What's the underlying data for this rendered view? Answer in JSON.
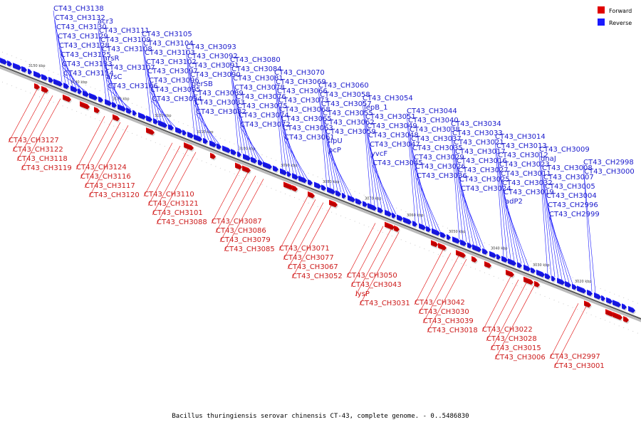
{
  "caption": "Bacillus thuringiensis serovar chinensis CT-43, complete genome. - 0..5486830",
  "colors": {
    "forward": "#e00000",
    "reverse": "#1a1aff",
    "backbone": "#888888"
  },
  "legend": [
    {
      "label": "Forward",
      "color": "#e00000"
    },
    {
      "label": "Reverse",
      "color": "#1a1aff"
    }
  ],
  "ticks": [
    "3150 kbp",
    "3140 kbp",
    "3130 kbp",
    "3120 kbp",
    "3110 kbp",
    "3100 kbp",
    "3090 kbp",
    "3080 kbp",
    "3070 kbp",
    "3060 kbp",
    "3050 kbp",
    "3040 kbp",
    "3030 kbp",
    "3020 kbp"
  ],
  "reverse_labels": [
    "CT43_CH3138",
    "CT43_CH3132",
    "CT43_CH3130",
    "CT43_CH3129",
    "CT43_CH3128",
    "CT43_CH3125",
    "CT43_CH3133",
    "CT43_CH3114",
    "acr3",
    "CT43_CH3111",
    "CT43_CH3109",
    "CT43_CH3108",
    "arsR",
    "CT43_CH3107",
    "arsC",
    "CT43_CH3106",
    "CT43_CH3105",
    "CT43_CH3104",
    "CT43_CH3103",
    "CT43_CH3102",
    "CT43_CH3097",
    "CT43_CH3096",
    "CT43_CH3095",
    "CT43_CH3094",
    "CT43_CH3093",
    "CT43_CH3092",
    "CT43_CH3091",
    "CT43_CH3090",
    "gerSB",
    "CT43_CH3089",
    "CT43_CH3083",
    "CT43_CH3082",
    "CT43_CH3080",
    "CT43_CH3084",
    "CT43_CH3081",
    "CT43_CH3078",
    "CT43_CH3076",
    "CT43_CH3075",
    "CT43_CH3074",
    "CT43_CH3072",
    "CT43_CH3070",
    "CT43_CH3069",
    "CT43_CH3066",
    "CT43_CH3073",
    "CT43_CH3068",
    "CT43_CH3065",
    "CT43_CH3063",
    "CT43_CH3061",
    "CT43_CH3060",
    "CT43_CH3058",
    "CT43_CH3057",
    "CT43_CH3055",
    "CT43_CH3062",
    "CT43_CH3059",
    "sipU",
    "pcP",
    "CT43_CH3054",
    "lepB_1",
    "CT43_CH3051",
    "CT43_CH3049",
    "CT43_CH3048",
    "CT43_CH3047",
    "yvcF",
    "CT43_CH3045",
    "CT43_CH3044",
    "CT43_CH3040",
    "CT43_CH3038",
    "CT43_CH3037",
    "CT43_CH3035",
    "CT43_CH3029",
    "CT43_CH3026",
    "CT43_CH3036",
    "CT43_CH3034",
    "CT43_CH3033",
    "CT43_CH3021",
    "CT43_CH3017",
    "CT43_CH3016",
    "CT43_CH3027",
    "CT43_CH3025",
    "CT43_CH3024",
    "CT43_CH3014",
    "CT43_CH3013",
    "CT43_CH3012",
    "CT43_CH3023",
    "CT43_CH3011",
    "CT43_CH3032",
    "CT43_CH3019",
    "adP2",
    "CT43_CH3009",
    "dnaJ",
    "CT43_CH3008",
    "CT43_CH3007",
    "CT43_CH3005",
    "CT43_CH3004",
    "CT43_CH2996",
    "CT43_CH2999",
    "CT43_CH2998",
    "CT43_CH3000"
  ],
  "forward_labels": [
    "CT43_CH3127",
    "CT43_CH3122",
    "CT43_CH3118",
    "CT43_CH3119",
    "CT43_CH3124",
    "CT43_CH3116",
    "CT43_CH3117",
    "CT43_CH3120",
    "CT43_CH3110",
    "CT43_CH3121",
    "CT43_CH3101",
    "CT43_CH3088",
    "CT43_CH3087",
    "CT43_CH3086",
    "CT43_CH3079",
    "CT43_CH3085",
    "CT43_CH3071",
    "CT43_CH3077",
    "CT43_CH3067",
    "CT43_CH3052",
    "CT43_CH3050",
    "CT43_CH3043",
    "lysP",
    "CT43_CH3031",
    "CT43_CH3042",
    "CT43_CH3030",
    "CT43_CH3039",
    "CT43_CH3018",
    "CT43_CH3022",
    "CT43_CH3028",
    "CT43_CH3015",
    "CT43_CH3006",
    "CT43_CH2997",
    "CT43_CH3001"
  ]
}
